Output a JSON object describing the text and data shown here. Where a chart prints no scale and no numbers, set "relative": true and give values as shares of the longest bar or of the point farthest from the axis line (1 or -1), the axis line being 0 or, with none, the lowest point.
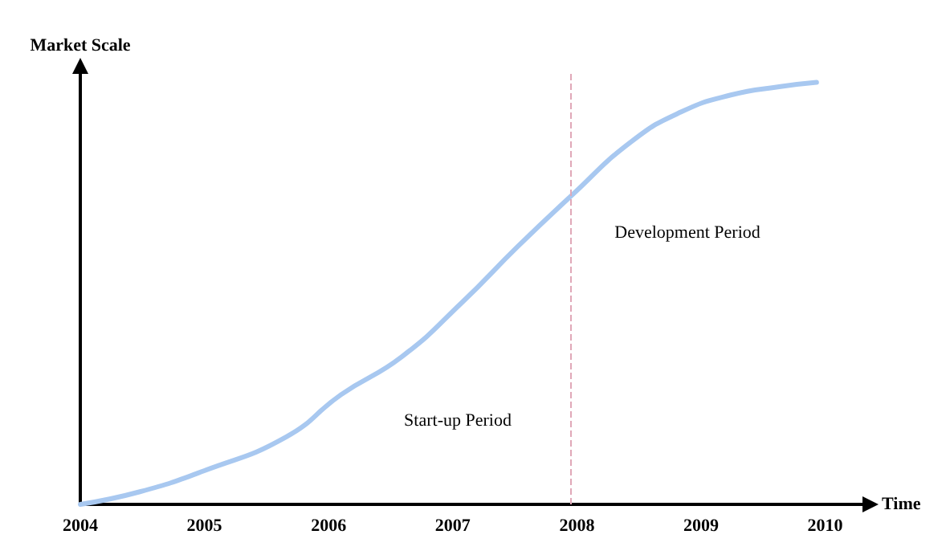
{
  "chart_data": {
    "type": "line",
    "relative": true,
    "xlabel": "Time",
    "ylabel": "Market Scale",
    "xlim": [
      2004,
      2010.3
    ],
    "xticks": [
      2004,
      2005,
      2006,
      2007,
      2008,
      2009,
      2010
    ],
    "series": [
      {
        "color": "#a8c8f0",
        "x": [
          2004,
          2004.48,
          2005,
          2005.66,
          2006.1,
          2006.59,
          2007.08,
          2007.52,
          2007.95,
          2008.44,
          2008.84,
          2009.24,
          2009.64,
          2009.93
        ],
        "values": [
          0,
          0.03,
          0.08,
          0.16,
          0.26,
          0.35,
          0.48,
          0.61,
          0.73,
          0.86,
          0.93,
          0.97,
          0.99,
          1
        ]
      }
    ],
    "ref_lines": [
      {
        "axis": "x",
        "value": 2007.95,
        "color": "#e0a8b8",
        "line_style": "dashed"
      }
    ],
    "annotations": [
      "Start-up Period",
      "Development Period"
    ],
    "grid": false,
    "marker": "none",
    "line_style": "solid"
  }
}
